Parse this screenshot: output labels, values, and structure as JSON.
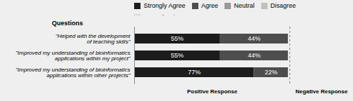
{
  "chart_data": {
    "type": "bar",
    "orientation": "horizontal",
    "stacked": true,
    "categories": [
      "\"Helped with the development\nof teaching skills\"",
      "\"Improved my understanding of bioinformatics\napplications within my project\"",
      "\"Improved my understanding of bioinformatics\napplications within other projects\""
    ],
    "series": [
      {
        "name": "Strongly Agree",
        "color": "#1c1c1c",
        "values": [
          55,
          55,
          77
        ],
        "value_labels": [
          "55%",
          "55%",
          "77%"
        ]
      },
      {
        "name": "Agree",
        "color": "#4d4d4d",
        "values": [
          44,
          44,
          22
        ],
        "value_labels": [
          "44%",
          "44%",
          "22%"
        ]
      },
      {
        "name": "Neutral",
        "color": "#999999",
        "values": [
          null,
          null,
          null
        ]
      },
      {
        "name": "Disagree",
        "color": "#c0c0c0",
        "values": [
          null,
          null,
          null
        ]
      },
      {
        "name": "Strongly Disagree",
        "color": "#d8d8d8",
        "values": [
          null,
          null,
          null
        ]
      }
    ],
    "xlim": [
      0,
      100
    ],
    "data_labels": true,
    "tick_labels": "y",
    "legend": "top",
    "annotations": [
      "Questions",
      "Positive Response",
      "Negative Response"
    ]
  }
}
